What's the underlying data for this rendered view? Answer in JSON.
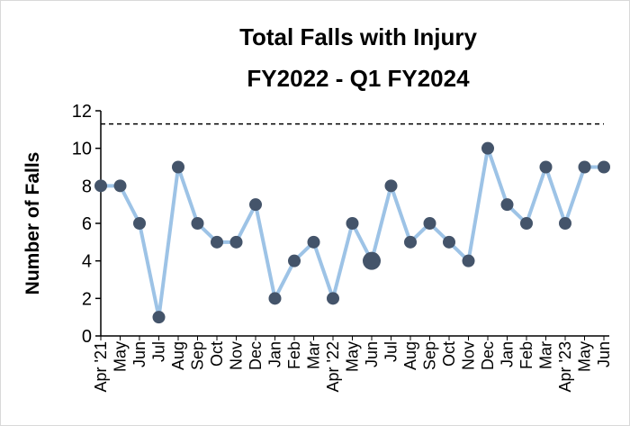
{
  "chart_data": {
    "type": "line",
    "title": "Total Falls with Injury",
    "subtitle": "FY2022 - Q1 FY2024",
    "y_label": "Number of Falls",
    "categories": [
      "Apr '21",
      "May",
      "Jun",
      "Jul",
      "Aug",
      "Sep",
      "Oct",
      "Nov",
      "Dec",
      "Jan",
      "Feb",
      "Mar",
      "Apr '22",
      "May",
      "Jun",
      "Jul",
      "Aug",
      "Sep",
      "Oct",
      "Nov",
      "Dec",
      "Jan",
      "Feb",
      "Mar",
      "Apr '23",
      "May",
      "Jun"
    ],
    "series": [
      {
        "name": "Total Falls with Injury",
        "line_color": "#9dc3e6",
        "marker_color": "#44546a",
        "values": [
          8,
          8,
          6,
          1,
          9,
          6,
          5,
          5,
          7,
          2,
          4,
          5,
          2,
          6,
          4,
          8,
          5,
          6,
          5,
          4,
          10,
          7,
          6,
          9,
          6,
          9,
          9
        ]
      }
    ],
    "emphasized_point": 14,
    "reference_line": 11.3,
    "ylim": [
      0,
      12
    ],
    "yticks": [
      0,
      2,
      4,
      6,
      8,
      10,
      12
    ]
  }
}
